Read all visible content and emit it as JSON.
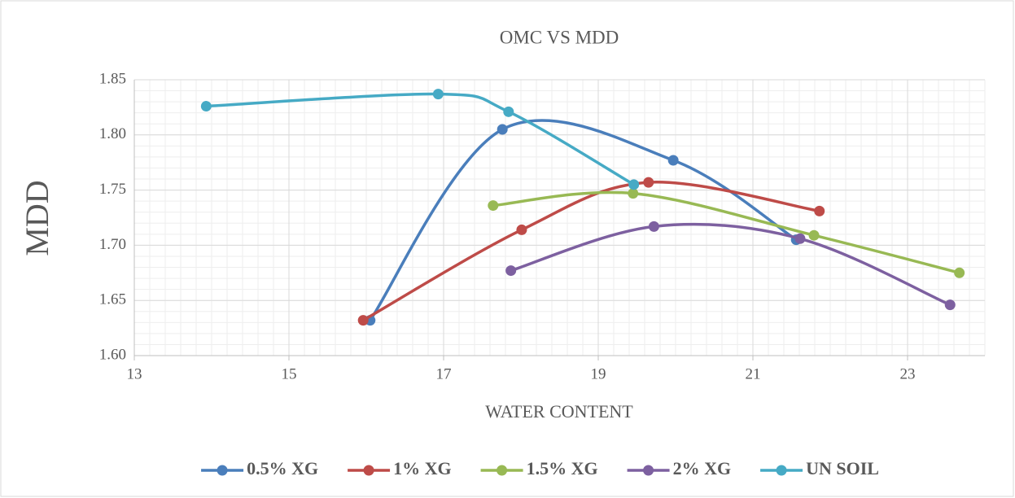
{
  "chart_data": {
    "type": "scatter_smooth",
    "title": "OMC VS MDD",
    "xlabel": "WATER CONTENT",
    "ylabel": "MDD",
    "xlim": [
      13,
      24
    ],
    "xticks": [
      13,
      15,
      17,
      19,
      21,
      23
    ],
    "ylim": [
      1.6,
      1.85
    ],
    "yticks": [
      {
        "value": 1.6,
        "label": "1.60"
      },
      1.65,
      {
        "value": 1.7,
        "label": "1.70"
      },
      1.75,
      {
        "value": 1.8,
        "label": "1.80"
      },
      1.85
    ],
    "grid": true,
    "minor_grid": true,
    "legend": "bottom",
    "series": [
      {
        "name": "0.5% XG",
        "color": "#4a7ebb",
        "x": [
          16.05,
          17.76,
          19.97,
          21.56
        ],
        "values": [
          1.632,
          1.805,
          1.777,
          1.705
        ]
      },
      {
        "name": "1% XG",
        "color": "#be4b48",
        "x": [
          15.96,
          18.01,
          19.65,
          21.86
        ],
        "values": [
          1.632,
          1.714,
          1.757,
          1.731
        ]
      },
      {
        "name": "1.5% XG",
        "color": "#98b954",
        "x": [
          17.64,
          19.45,
          21.79,
          23.67
        ],
        "values": [
          1.736,
          1.747,
          1.709,
          1.675
        ]
      },
      {
        "name": "2% XG",
        "color": "#7d60a0",
        "x": [
          17.87,
          19.72,
          21.61,
          23.55
        ],
        "values": [
          1.677,
          1.717,
          1.706,
          1.646
        ]
      },
      {
        "name": "UN SOIL",
        "color": "#46aac5",
        "x": [
          13.93,
          16.93,
          17.84,
          19.46
        ],
        "values": [
          1.826,
          1.837,
          1.821,
          1.755
        ]
      }
    ]
  }
}
